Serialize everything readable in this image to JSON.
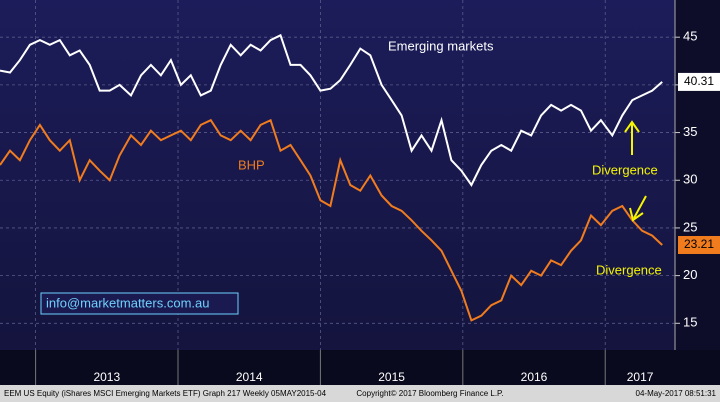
{
  "chart_data": {
    "type": "line",
    "x": [
      2012.75,
      2012.82,
      2012.89,
      2012.96,
      2013.03,
      2013.1,
      2013.17,
      2013.24,
      2013.31,
      2013.38,
      2013.45,
      2013.52,
      2013.59,
      2013.67,
      2013.74,
      2013.81,
      2013.88,
      2013.95,
      2014.02,
      2014.09,
      2014.16,
      2014.23,
      2014.3,
      2014.37,
      2014.44,
      2014.51,
      2014.58,
      2014.65,
      2014.72,
      2014.79,
      2014.86,
      2014.93,
      2015.0,
      2015.07,
      2015.14,
      2015.21,
      2015.28,
      2015.35,
      2015.43,
      2015.5,
      2015.57,
      2015.64,
      2015.71,
      2015.78,
      2015.85,
      2015.92,
      2015.99,
      2016.06,
      2016.13,
      2016.2,
      2016.27,
      2016.34,
      2016.41,
      2016.48,
      2016.55,
      2016.62,
      2016.69,
      2016.76,
      2016.83,
      2016.9,
      2016.97,
      2017.05,
      2017.12,
      2017.19,
      2017.26,
      2017.33,
      2017.4
    ],
    "series": [
      {
        "name": "Emerging markets",
        "color": "#ffffff",
        "values": [
          41.5,
          41.3,
          42.6,
          44.2,
          44.7,
          44.2,
          44.7,
          43.1,
          43.6,
          42.1,
          39.4,
          39.4,
          40.0,
          38.9,
          41.0,
          42.1,
          41.0,
          42.6,
          40.0,
          41.0,
          38.9,
          39.4,
          42.1,
          44.2,
          43.1,
          44.2,
          43.6,
          44.7,
          45.2,
          42.1,
          42.1,
          41.0,
          39.4,
          39.6,
          40.5,
          42.1,
          43.8,
          43.1,
          40.0,
          38.4,
          36.8,
          33.1,
          34.7,
          33.1,
          36.3,
          32.1,
          31.0,
          29.5,
          31.6,
          33.1,
          33.7,
          33.1,
          35.2,
          34.7,
          36.8,
          37.9,
          37.3,
          37.9,
          37.3,
          35.2,
          36.3,
          34.7,
          36.8,
          38.4,
          38.9,
          39.4,
          40.31
        ]
      },
      {
        "name": "BHP",
        "color": "#f07c1e",
        "values": [
          31.6,
          33.1,
          32.1,
          34.2,
          35.8,
          34.2,
          33.1,
          34.2,
          30.0,
          32.1,
          31.0,
          30.0,
          32.6,
          34.7,
          33.7,
          35.2,
          34.2,
          34.7,
          35.2,
          34.2,
          35.8,
          36.3,
          34.7,
          34.2,
          35.2,
          34.2,
          35.8,
          36.3,
          33.1,
          33.7,
          32.1,
          30.5,
          27.9,
          27.3,
          32.1,
          29.5,
          28.9,
          30.5,
          28.4,
          27.3,
          26.8,
          25.8,
          24.7,
          23.7,
          22.6,
          20.5,
          18.4,
          15.3,
          15.8,
          16.9,
          17.4,
          20.0,
          19.0,
          20.5,
          20.0,
          21.6,
          21.1,
          22.6,
          23.7,
          26.3,
          25.3,
          26.8,
          27.3,
          25.8,
          24.7,
          24.2,
          23.21
        ]
      }
    ],
    "xlim": [
      2012.75,
      2017.49
    ],
    "xticks": [
      2013,
      2014,
      2015,
      2016,
      2017
    ],
    "ylim": [
      12.2,
      48.9
    ],
    "yticks": [
      15,
      20,
      25,
      30,
      35,
      40,
      45
    ],
    "grid": true,
    "annotations": [
      "Divergence",
      "Divergence",
      "info@marketmatters.com.au"
    ],
    "footer": [
      "EEM US Equity (iShares MSCI Emerging Markets ETF) Graph 217  Weekly 05MAY2015-04",
      "Copyright© 2017 Bloomberg Finance L.P.",
      "04-May-2017 08:51:31"
    ]
  }
}
